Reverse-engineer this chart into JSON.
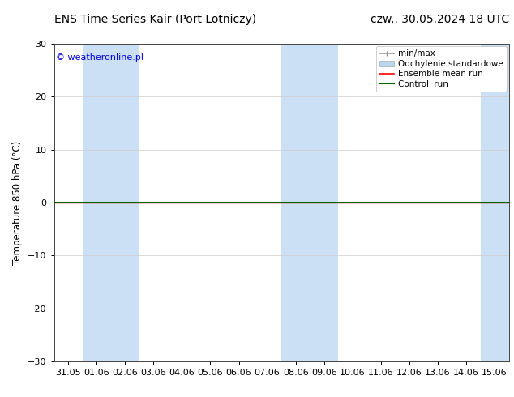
{
  "title_left": "ENS Time Series Kair (Port Lotniczy)",
  "title_right": "czw.. 30.05.2024 18 UTC",
  "ylabel": "Temperature 850 hPa (°C)",
  "ylim": [
    -30,
    30
  ],
  "yticks": [
    -30,
    -20,
    -10,
    0,
    10,
    20,
    30
  ],
  "x_labels": [
    "31.05",
    "01.06",
    "02.06",
    "03.06",
    "04.06",
    "05.06",
    "06.06",
    "07.06",
    "08.06",
    "09.06",
    "10.06",
    "11.06",
    "12.06",
    "13.06",
    "14.06",
    "15.06"
  ],
  "watermark": "© weatheronline.pl",
  "watermark_color": "#0000dd",
  "bg_color": "#ffffff",
  "plot_bg_color": "#ffffff",
  "shaded_band_color": "#cce0f5",
  "shaded_columns": [
    1,
    2,
    8,
    9,
    15
  ],
  "ensemble_mean_color": "#ff0000",
  "control_run_color": "#006600",
  "minmax_color": "#999999",
  "std_dev_color": "#b8d8f0",
  "legend_entries": [
    "min/max",
    "Odchylenie standardowe",
    "Ensemble mean run",
    "Controll run"
  ],
  "title_fontsize": 10,
  "axis_fontsize": 8.5,
  "tick_fontsize": 8,
  "legend_fontsize": 7.5
}
